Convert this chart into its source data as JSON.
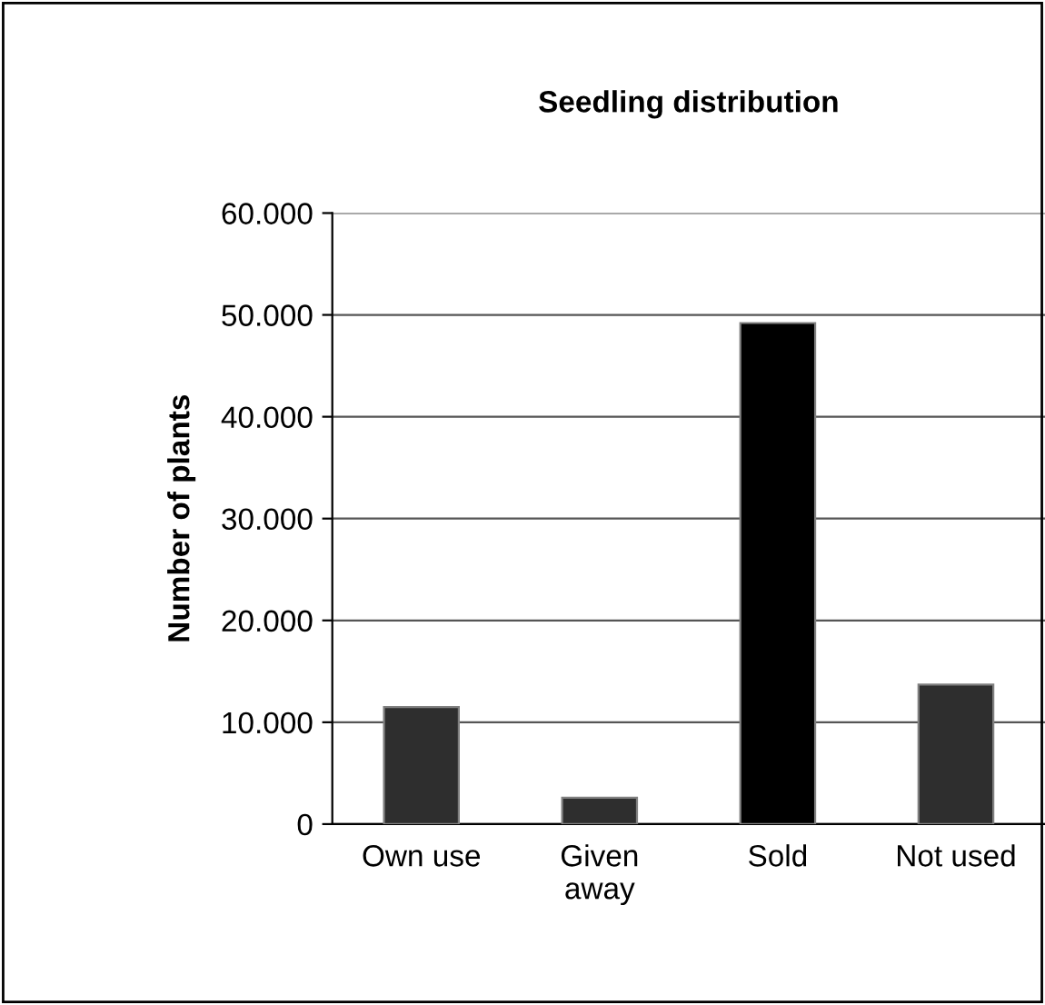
{
  "chart_data": {
    "type": "bar",
    "title": "Seedling distribution",
    "ylabel": "Number of plants",
    "categories": [
      "Own use",
      "Given\naway",
      "Sold",
      "Not used"
    ],
    "values": [
      11500,
      2600,
      49200,
      13700
    ],
    "colors": [
      "#2e2e2e",
      "#2e2e2e",
      "#000000",
      "#2e2e2e"
    ],
    "ylim": [
      0,
      60000
    ],
    "yticks": [
      0,
      {
        "value": 10000,
        "label": "10.000"
      },
      {
        "value": 20000,
        "label": "20.000"
      },
      {
        "value": 30000,
        "label": "30.000"
      },
      {
        "value": 40000,
        "label": "40.000"
      },
      {
        "value": 50000,
        "label": "50.000"
      },
      {
        "value": 60000,
        "label": "60.000"
      }
    ],
    "grid": "y",
    "legend": false
  }
}
